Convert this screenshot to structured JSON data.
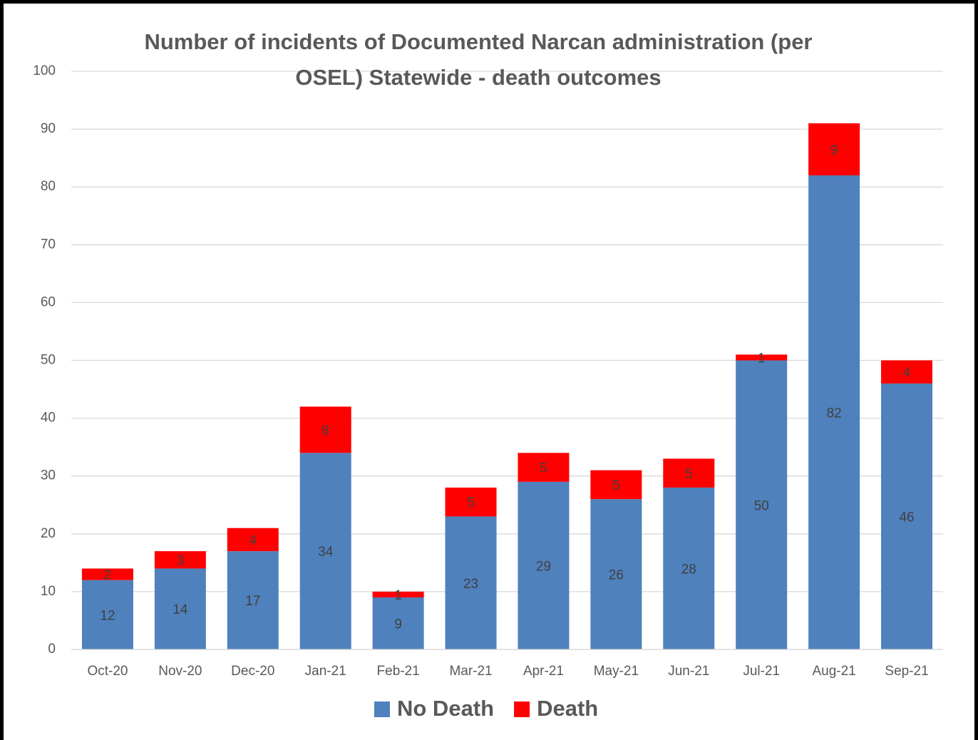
{
  "chart_data": {
    "type": "stacked_bar",
    "title": "Number of incidents of Documented Narcan administration (per OSEL) Statewide - death outcomes",
    "categories": [
      "Oct-20",
      "Nov-20",
      "Dec-20",
      "Jan-21",
      "Feb-21",
      "Mar-21",
      "Apr-21",
      "May-21",
      "Jun-21",
      "Jul-21",
      "Aug-21",
      "Sep-21"
    ],
    "series": [
      {
        "name": "No Death",
        "color": "#4f81bd",
        "values": [
          12,
          14,
          17,
          34,
          9,
          23,
          29,
          26,
          28,
          50,
          82,
          46
        ]
      },
      {
        "name": "Death",
        "color": "#ff0000",
        "values": [
          2,
          3,
          4,
          8,
          1,
          5,
          5,
          5,
          5,
          1,
          9,
          4
        ]
      }
    ],
    "ylim": [
      0,
      100
    ],
    "yticks": [
      0,
      10,
      20,
      30,
      40,
      50,
      60,
      70,
      80,
      90,
      100
    ],
    "grid": true,
    "legend": "bottom"
  }
}
